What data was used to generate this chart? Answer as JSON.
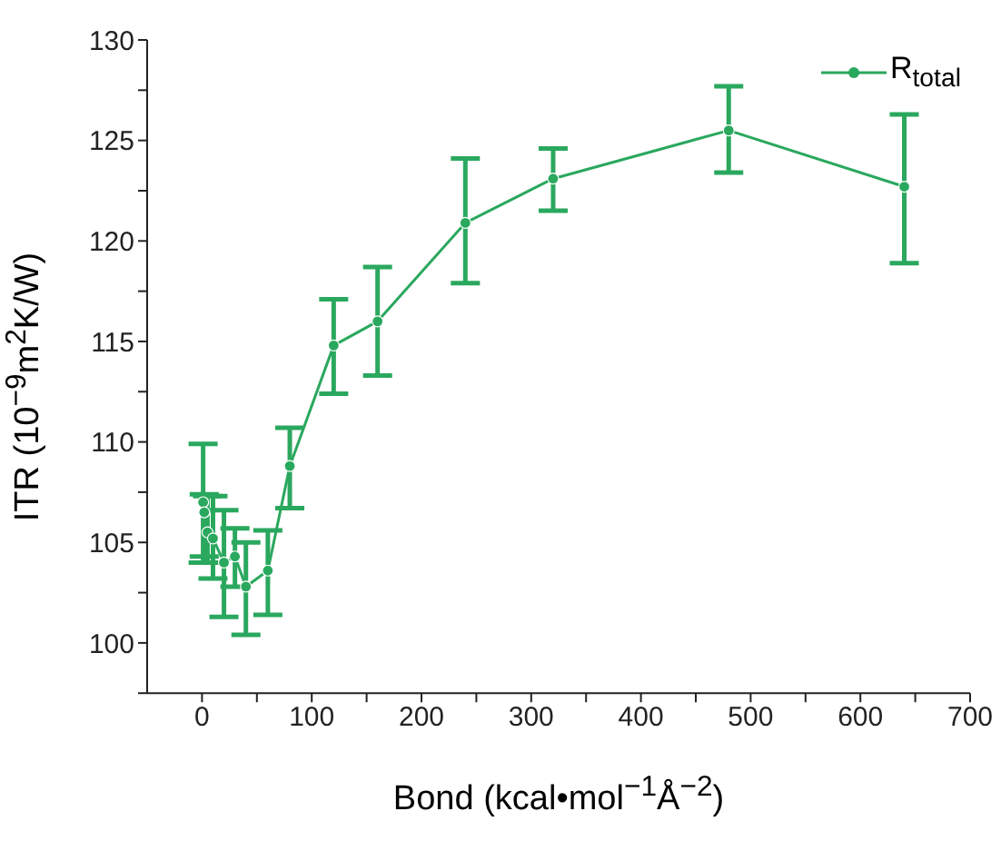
{
  "chart_data": {
    "type": "line",
    "xlabel": "Bond (kcal•mol$^{−1}$Å$^{−2}$)",
    "ylabel": "ITR (10$^{−9}$m$^{2}$K/W)",
    "x": [
      1,
      2,
      5,
      10,
      20,
      30,
      40,
      60,
      80,
      120,
      160,
      240,
      320,
      480,
      640
    ],
    "series": [
      {
        "name": "R$_{total}$",
        "color": "#2aa85e",
        "values": [
          107,
          106.5,
          105.5,
          105.2,
          104,
          104.3,
          102.8,
          103.6,
          108.8,
          114.8,
          116,
          120.9,
          123.1,
          125.5,
          122.7
        ],
        "errors": [
          [
            104,
            109.9
          ],
          [
            104.3,
            107.4
          ],
          [
            104,
            107.3
          ],
          [
            103.2,
            107.3
          ],
          [
            101.3,
            106.6
          ],
          [
            102.8,
            105.7
          ],
          [
            100.4,
            105
          ],
          [
            101.4,
            105.6
          ],
          [
            106.7,
            110.7
          ],
          [
            112.4,
            117.1
          ],
          [
            113.3,
            118.7
          ],
          [
            117.9,
            124.1
          ],
          [
            121.5,
            124.6
          ],
          [
            123.4,
            127.7
          ],
          [
            118.9,
            126.3
          ]
        ]
      }
    ],
    "xlim": [
      -50,
      700
    ],
    "xticks": [
      0,
      {
        "value": 50,
        "label": null
      },
      100,
      {
        "value": 150,
        "label": null
      },
      200,
      {
        "value": 250,
        "label": null
      },
      300,
      {
        "value": 350,
        "label": null
      },
      400,
      {
        "value": 450,
        "label": null
      },
      500,
      {
        "value": 550,
        "label": null
      },
      600,
      {
        "value": 650,
        "label": null
      },
      700
    ],
    "ylim": [
      97.5,
      130
    ],
    "yticks": [
      {
        "value": 97.5,
        "label": null
      },
      100,
      {
        "value": 102.5,
        "label": null
      },
      105,
      {
        "value": 107.5,
        "label": null
      },
      110,
      {
        "value": 112.5,
        "label": null
      },
      115,
      {
        "value": 117.5,
        "label": null
      },
      120,
      {
        "value": 122.5,
        "label": null
      },
      125,
      {
        "value": 127.5,
        "label": null
      },
      130
    ],
    "grid": false,
    "legend": "top right",
    "marker": "circle",
    "line_style": "solid"
  }
}
